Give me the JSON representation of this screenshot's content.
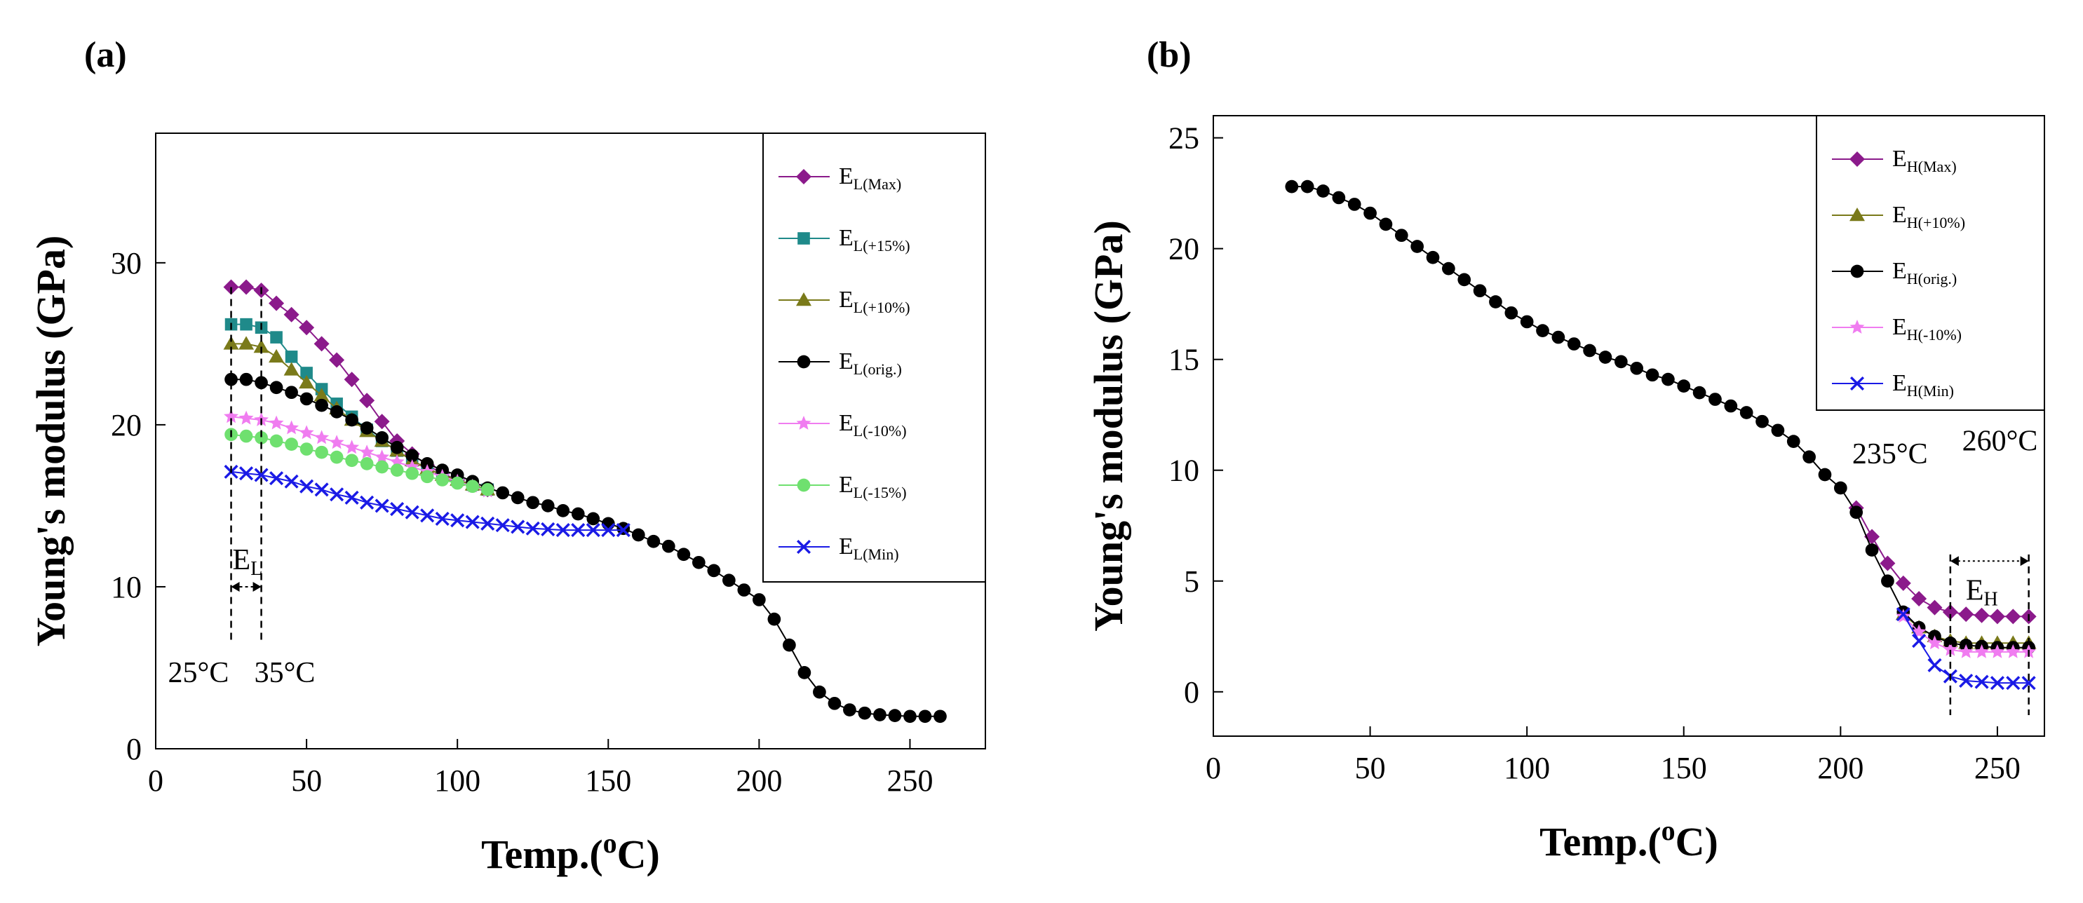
{
  "chart_data": [
    {
      "panel_label": "(a)",
      "type": "line",
      "xlabel": "Temp.(",
      "xlabel_sup": "o",
      "xlabel_end": "C)",
      "ylabel": "Young's modulus (GPa)",
      "xlim": [
        0,
        275
      ],
      "ylim": [
        0,
        38
      ],
      "xticks": [
        0,
        50,
        100,
        150,
        200,
        250
      ],
      "yticks": [
        0,
        10,
        20,
        30
      ],
      "legend_position": "top-right",
      "annotations": [
        {
          "text": "25°C",
          "x": 25
        },
        {
          "text": "35°C",
          "x": 35
        },
        {
          "text": "E",
          "sub": "L",
          "x": 30,
          "y": 10
        }
      ],
      "series": [
        {
          "name": "E",
          "sub": "L(Max)",
          "marker": "diamond",
          "color": "#8B1A8B",
          "x": [
            25,
            30,
            35,
            40,
            45,
            50,
            55,
            60,
            65,
            70,
            75,
            80,
            85,
            90,
            95,
            100,
            105,
            110
          ],
          "y": [
            28.5,
            28.5,
            28.3,
            27.5,
            26.8,
            26,
            25,
            24,
            22.8,
            21.5,
            20.2,
            19,
            18.2,
            17.5,
            17,
            16.6,
            16.3,
            16
          ]
        },
        {
          "name": "E",
          "sub": "L(+15%)",
          "marker": "square",
          "color": "#1F8A8A",
          "x": [
            25,
            30,
            35,
            40,
            45,
            50,
            55,
            60,
            65,
            70,
            75,
            80,
            85,
            90,
            95,
            100,
            105,
            110
          ],
          "y": [
            26.2,
            26.2,
            26,
            25.4,
            24.2,
            23.2,
            22.2,
            21.3,
            20.5,
            19.7,
            19,
            18.4,
            17.8,
            17.3,
            16.9,
            16.6,
            16.3,
            16
          ]
        },
        {
          "name": "E",
          "sub": "L(+10%)",
          "marker": "triangle",
          "color": "#7A7A1A",
          "x": [
            25,
            30,
            35,
            40,
            45,
            50,
            55,
            60,
            65,
            70,
            75,
            80,
            85,
            90,
            95,
            100,
            105,
            110
          ],
          "y": [
            25,
            25,
            24.8,
            24.2,
            23.4,
            22.6,
            21.8,
            21,
            20.3,
            19.6,
            19,
            18.4,
            17.8,
            17.3,
            16.9,
            16.6,
            16.3,
            16
          ]
        },
        {
          "name": "E",
          "sub": "L(orig.)",
          "marker": "circle",
          "color": "#000000",
          "x": [
            25,
            30,
            35,
            40,
            45,
            50,
            55,
            60,
            65,
            70,
            75,
            80,
            85,
            90,
            95,
            100,
            105,
            110,
            115,
            120,
            125,
            130,
            135,
            140,
            145,
            150,
            155,
            160,
            165,
            170,
            175,
            180,
            185,
            190,
            195,
            200,
            205,
            210,
            215,
            220,
            225,
            230,
            235,
            240,
            245,
            250,
            255,
            260
          ],
          "y": [
            22.8,
            22.8,
            22.6,
            22.3,
            22,
            21.6,
            21.2,
            20.8,
            20.3,
            19.8,
            19.2,
            18.6,
            18.1,
            17.6,
            17.2,
            16.9,
            16.5,
            16.1,
            15.8,
            15.5,
            15.2,
            15,
            14.7,
            14.5,
            14.2,
            13.9,
            13.6,
            13.2,
            12.8,
            12.5,
            12,
            11.5,
            11,
            10.4,
            9.8,
            9.2,
            8,
            6.4,
            4.7,
            3.5,
            2.8,
            2.4,
            2.2,
            2.1,
            2.05,
            2,
            2,
            2
          ]
        },
        {
          "name": "E",
          "sub": "L(-10%)",
          "marker": "star",
          "color": "#F07CF0",
          "x": [
            25,
            30,
            35,
            40,
            45,
            50,
            55,
            60,
            65,
            70,
            75,
            80,
            85,
            90,
            95,
            100,
            105,
            110
          ],
          "y": [
            20.5,
            20.4,
            20.3,
            20.1,
            19.8,
            19.5,
            19.2,
            18.9,
            18.6,
            18.3,
            18,
            17.7,
            17.4,
            17.1,
            16.8,
            16.5,
            16.2,
            15.9
          ]
        },
        {
          "name": "E",
          "sub": "L(-15%)",
          "marker": "circle",
          "color": "#6FE06F",
          "x": [
            25,
            30,
            35,
            40,
            45,
            50,
            55,
            60,
            65,
            70,
            75,
            80,
            85,
            90,
            95,
            100,
            105,
            110
          ],
          "y": [
            19.4,
            19.3,
            19.2,
            19,
            18.8,
            18.5,
            18.3,
            18,
            17.8,
            17.6,
            17.4,
            17.2,
            17,
            16.8,
            16.6,
            16.4,
            16.2,
            16
          ]
        },
        {
          "name": "E",
          "sub": "L(Min)",
          "marker": "x",
          "color": "#1A1AE6",
          "x": [
            25,
            30,
            35,
            40,
            45,
            50,
            55,
            60,
            65,
            70,
            75,
            80,
            85,
            90,
            95,
            100,
            105,
            110,
            115,
            120,
            125,
            130,
            135,
            140,
            145,
            150,
            155
          ],
          "y": [
            17.1,
            17,
            16.9,
            16.7,
            16.5,
            16.2,
            16,
            15.7,
            15.5,
            15.2,
            15,
            14.8,
            14.6,
            14.4,
            14.2,
            14.1,
            14,
            13.9,
            13.8,
            13.7,
            13.6,
            13.55,
            13.5,
            13.5,
            13.5,
            13.5,
            13.5
          ]
        }
      ]
    },
    {
      "panel_label": "(b)",
      "type": "line",
      "xlabel": "Temp.(",
      "xlabel_sup": "o",
      "xlabel_end": "C)",
      "ylabel": "Young's modulus (GPa)",
      "xlim": [
        0,
        265
      ],
      "ylim": [
        -2,
        26
      ],
      "xticks": [
        0,
        50,
        100,
        150,
        200,
        250
      ],
      "yticks": [
        0,
        5,
        10,
        15,
        20,
        25
      ],
      "legend_position": "top-right",
      "annotations": [
        {
          "text": "235°C",
          "x": 235
        },
        {
          "text": "260°C",
          "x": 260
        },
        {
          "text": "E",
          "sub": "H",
          "x": 247,
          "y": 4.5
        }
      ],
      "series": [
        {
          "name": "E",
          "sub": "H(Max)",
          "marker": "diamond",
          "color": "#8B1A8B",
          "x": [
            205,
            210,
            215,
            220,
            225,
            230,
            235,
            240,
            245,
            250,
            255,
            260
          ],
          "y": [
            8.3,
            7,
            5.8,
            4.9,
            4.2,
            3.8,
            3.6,
            3.5,
            3.45,
            3.4,
            3.4,
            3.4
          ]
        },
        {
          "name": "E",
          "sub": "H(+10%)",
          "marker": "triangle",
          "color": "#7A7A1A",
          "x": [
            220,
            225,
            230,
            235,
            240,
            245,
            250,
            255,
            260
          ],
          "y": [
            3.5,
            2.9,
            2.5,
            2.3,
            2.2,
            2.2,
            2.2,
            2.2,
            2.2
          ]
        },
        {
          "name": "E",
          "sub": "H(orig.)",
          "marker": "circle",
          "color": "#000000",
          "x": [
            25,
            30,
            35,
            40,
            45,
            50,
            55,
            60,
            65,
            70,
            75,
            80,
            85,
            90,
            95,
            100,
            105,
            110,
            115,
            120,
            125,
            130,
            135,
            140,
            145,
            150,
            155,
            160,
            165,
            170,
            175,
            180,
            185,
            190,
            195,
            200,
            205,
            210,
            215,
            220,
            225,
            230,
            235,
            240,
            245,
            250,
            255,
            260
          ],
          "y": [
            22.8,
            22.8,
            22.6,
            22.3,
            22,
            21.6,
            21.1,
            20.6,
            20.1,
            19.6,
            19.1,
            18.6,
            18.1,
            17.6,
            17.1,
            16.7,
            16.3,
            16,
            15.7,
            15.4,
            15.1,
            14.9,
            14.6,
            14.3,
            14.1,
            13.8,
            13.5,
            13.2,
            12.9,
            12.6,
            12.2,
            11.8,
            11.3,
            10.6,
            9.8,
            9.2,
            8.1,
            6.4,
            5,
            3.6,
            2.9,
            2.5,
            2.2,
            2.1,
            2.05,
            2,
            2,
            2
          ]
        },
        {
          "name": "E",
          "sub": "H(-10%)",
          "marker": "star",
          "color": "#F07CF0",
          "x": [
            220,
            225,
            230,
            235,
            240,
            245,
            250,
            255,
            260
          ],
          "y": [
            3.4,
            2.7,
            2.2,
            1.9,
            1.8,
            1.8,
            1.8,
            1.8,
            1.8
          ]
        },
        {
          "name": "E",
          "sub": "H(Min)",
          "marker": "x",
          "color": "#1A1AE6",
          "x": [
            220,
            225,
            230,
            235,
            240,
            245,
            250,
            255,
            260
          ],
          "y": [
            3.5,
            2.3,
            1.2,
            0.7,
            0.5,
            0.45,
            0.4,
            0.4,
            0.4
          ]
        }
      ]
    }
  ]
}
